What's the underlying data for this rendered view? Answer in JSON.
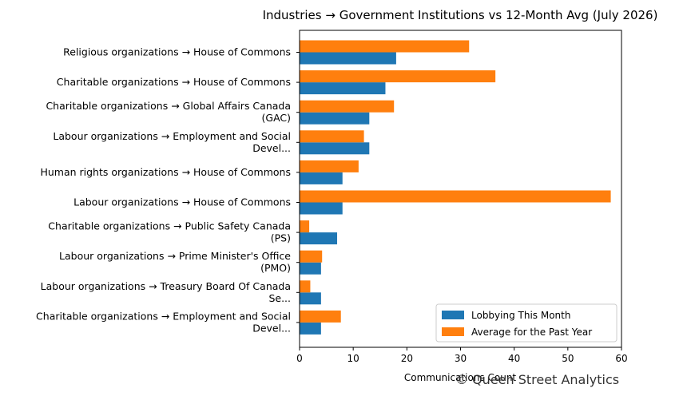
{
  "chart_data": {
    "type": "bar",
    "orientation": "horizontal",
    "title": "Industries → Government Institutions vs 12-Month Avg (July 2026)",
    "xlabel": "Communications Count",
    "ylabel": "",
    "xlim": [
      0,
      60
    ],
    "xticks": [
      0,
      10,
      20,
      30,
      40,
      50,
      60
    ],
    "grid": false,
    "legend_position": "lower-right",
    "categories": [
      [
        "Religious organizations → House of Commons"
      ],
      [
        "Charitable organizations → House of Commons"
      ],
      [
        "Charitable organizations → Global Affairs Canada",
        "(GAC)"
      ],
      [
        "Labour organizations → Employment and Social",
        "Devel..."
      ],
      [
        "Human rights organizations → House of Commons"
      ],
      [
        "Labour organizations → House of Commons"
      ],
      [
        "Charitable organizations → Public Safety Canada",
        "(PS)"
      ],
      [
        "Labour organizations → Prime Minister's Office",
        "(PMO)"
      ],
      [
        "Labour organizations → Treasury Board Of Canada",
        "Se..."
      ],
      [
        "Charitable organizations → Employment and Social",
        "Devel..."
      ]
    ],
    "series": [
      {
        "name": "Lobbying This Month",
        "color": "#1f77b4",
        "values": [
          18,
          16,
          13,
          13,
          8,
          8,
          7,
          4,
          4,
          4
        ]
      },
      {
        "name": "Average for the Past Year",
        "color": "#ff7f0e",
        "values": [
          31.6,
          36.5,
          17.6,
          12,
          11,
          58,
          1.8,
          4.2,
          2,
          7.7
        ]
      }
    ]
  },
  "watermark": "© Queen Street Analytics"
}
